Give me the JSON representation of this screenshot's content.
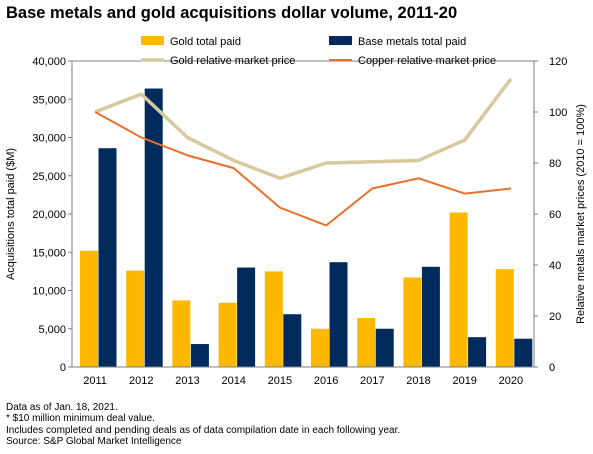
{
  "chart_data": {
    "type": "bar",
    "title": "Base metals and gold acquisitions dollar volume, 2011-20",
    "categories": [
      "2011",
      "2012",
      "2013",
      "2014",
      "2015",
      "2016",
      "2017",
      "2018",
      "2019",
      "2020"
    ],
    "ylabel": "Acquisitions total paid ($M)",
    "y2label": "Relative metals market prices (2010 = 100%)",
    "ylim": [
      0,
      40000
    ],
    "yticks": [
      0,
      5000,
      10000,
      15000,
      20000,
      25000,
      30000,
      35000,
      40000
    ],
    "ytick_labels": [
      "0",
      "5,000",
      "10,000",
      "15,000",
      "20,000",
      "25,000",
      "30,000",
      "35,000",
      "40,000"
    ],
    "y2lim": [
      0,
      120
    ],
    "y2ticks": [
      0,
      20,
      40,
      60,
      80,
      100,
      120
    ],
    "y2tick_labels": [
      "0",
      "20",
      "40",
      "60",
      "80",
      "100",
      "120"
    ],
    "legend_position": "top",
    "series": [
      {
        "name": "Gold total paid",
        "type": "bar",
        "axis": "left",
        "color": "#FFB800",
        "values": [
          15200,
          12600,
          8700,
          8400,
          12500,
          5000,
          6400,
          11700,
          20200,
          12800
        ]
      },
      {
        "name": "Base metals total paid",
        "type": "bar",
        "axis": "left",
        "color": "#002B5C",
        "values": [
          28600,
          36400,
          3000,
          13000,
          6900,
          13700,
          5000,
          13100,
          3900,
          3700
        ]
      },
      {
        "name": "Gold relative market price",
        "type": "line",
        "axis": "right",
        "color": "#D8C89E",
        "values": [
          100,
          107,
          90,
          81,
          74,
          80,
          80.5,
          81,
          89,
          113
        ]
      },
      {
        "name": "Copper relative market price",
        "type": "line",
        "axis": "right",
        "color": "#E8702A",
        "values": [
          100,
          90,
          83,
          78,
          62.5,
          55.5,
          70,
          74,
          68,
          70
        ]
      }
    ]
  },
  "notes": [
    "Data as of Jan. 18, 2021.",
    "* $10 million minimum deal value.",
    "Includes completed and pending deals as of data compilation date in each following year.",
    "Source: S&P Global Market Intelligence"
  ]
}
